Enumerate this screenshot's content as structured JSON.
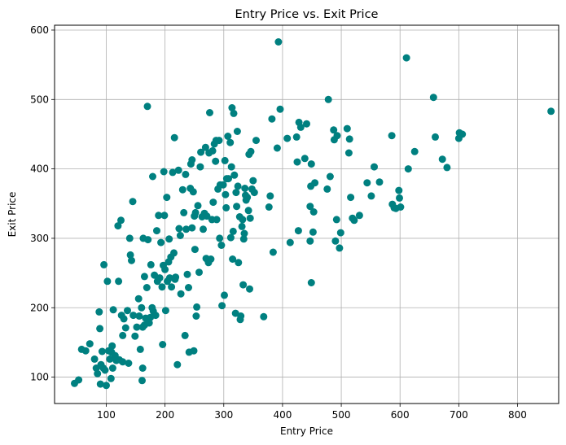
{
  "chart_data": {
    "type": "scatter",
    "title": "Entry Price vs. Exit Price",
    "xlabel": "Entry Price",
    "ylabel": "Exit Price",
    "xlim": [
      12,
      870
    ],
    "ylim": [
      62,
      607
    ],
    "xticks": [
      100,
      200,
      300,
      400,
      500,
      600,
      700,
      800
    ],
    "yticks": [
      100,
      200,
      300,
      400,
      500,
      600
    ],
    "grid": true,
    "marker_color": "#008080",
    "points": [
      [
        46,
        91
      ],
      [
        53,
        96
      ],
      [
        58,
        140
      ],
      [
        65,
        138
      ],
      [
        72,
        148
      ],
      [
        80,
        126
      ],
      [
        83,
        113
      ],
      [
        85,
        105
      ],
      [
        88,
        194
      ],
      [
        89,
        170
      ],
      [
        90,
        90
      ],
      [
        91,
        118
      ],
      [
        93,
        137
      ],
      [
        95,
        113
      ],
      [
        96,
        262
      ],
      [
        98,
        110
      ],
      [
        100,
        88
      ],
      [
        102,
        238
      ],
      [
        104,
        138
      ],
      [
        106,
        126
      ],
      [
        108,
        98
      ],
      [
        109,
        136
      ],
      [
        110,
        145
      ],
      [
        111,
        113
      ],
      [
        112,
        197
      ],
      [
        115,
        131
      ],
      [
        117,
        124
      ],
      [
        120,
        318
      ],
      [
        121,
        238
      ],
      [
        122,
        125
      ],
      [
        125,
        326
      ],
      [
        126,
        189
      ],
      [
        128,
        160
      ],
      [
        128,
        122
      ],
      [
        130,
        184
      ],
      [
        133,
        171
      ],
      [
        136,
        196
      ],
      [
        138,
        120
      ],
      [
        140,
        300
      ],
      [
        141,
        276
      ],
      [
        143,
        268
      ],
      [
        145,
        353
      ],
      [
        146,
        189
      ],
      [
        149,
        159
      ],
      [
        152,
        172
      ],
      [
        155,
        213
      ],
      [
        156,
        188
      ],
      [
        158,
        140
      ],
      [
        160,
        200
      ],
      [
        161,
        95
      ],
      [
        162,
        113
      ],
      [
        162,
        172
      ],
      [
        163,
        300
      ],
      [
        165,
        245
      ],
      [
        165,
        175
      ],
      [
        167,
        185
      ],
      [
        169,
        229
      ],
      [
        170,
        490
      ],
      [
        171,
        298
      ],
      [
        173,
        178
      ],
      [
        175,
        186
      ],
      [
        176,
        262
      ],
      [
        178,
        200
      ],
      [
        179,
        389
      ],
      [
        180,
        195
      ],
      [
        182,
        247
      ],
      [
        184,
        189
      ],
      [
        186,
        311
      ],
      [
        187,
        238
      ],
      [
        189,
        333
      ],
      [
        191,
        243
      ],
      [
        193,
        294
      ],
      [
        195,
        230
      ],
      [
        196,
        147
      ],
      [
        197,
        261
      ],
      [
        198,
        396
      ],
      [
        199,
        333
      ],
      [
        200,
        255
      ],
      [
        201,
        196
      ],
      [
        203,
        359
      ],
      [
        204,
        238
      ],
      [
        206,
        266
      ],
      [
        207,
        299
      ],
      [
        208,
        243
      ],
      [
        210,
        273
      ],
      [
        211,
        230
      ],
      [
        213,
        395
      ],
      [
        215,
        279
      ],
      [
        216,
        445
      ],
      [
        217,
        241
      ],
      [
        218,
        244
      ],
      [
        221,
        118
      ],
      [
        223,
        398
      ],
      [
        224,
        314
      ],
      [
        226,
        304
      ],
      [
        227,
        220
      ],
      [
        230,
        370
      ],
      [
        232,
        337
      ],
      [
        234,
        160
      ],
      [
        235,
        392
      ],
      [
        236,
        313
      ],
      [
        238,
        248
      ],
      [
        240,
        229
      ],
      [
        241,
        136
      ],
      [
        243,
        372
      ],
      [
        244,
        407
      ],
      [
        246,
        413
      ],
      [
        246,
        315
      ],
      [
        248,
        367
      ],
      [
        249,
        138
      ],
      [
        250,
        332
      ],
      [
        251,
        284
      ],
      [
        252,
        337
      ],
      [
        253,
        188
      ],
      [
        254,
        201
      ],
      [
        256,
        347
      ],
      [
        258,
        251
      ],
      [
        260,
        403
      ],
      [
        261,
        424
      ],
      [
        263,
        331
      ],
      [
        265,
        313
      ],
      [
        267,
        336
      ],
      [
        269,
        431
      ],
      [
        270,
        271
      ],
      [
        271,
        332
      ],
      [
        273,
        268
      ],
      [
        274,
        265
      ],
      [
        275,
        423
      ],
      [
        276,
        481
      ],
      [
        278,
        270
      ],
      [
        280,
        327
      ],
      [
        281,
        426
      ],
      [
        282,
        352
      ],
      [
        284,
        436
      ],
      [
        286,
        411
      ],
      [
        287,
        441
      ],
      [
        288,
        327
      ],
      [
        290,
        371
      ],
      [
        292,
        441
      ],
      [
        293,
        300
      ],
      [
        294,
        377
      ],
      [
        296,
        290
      ],
      [
        297,
        203
      ],
      [
        299,
        377
      ],
      [
        301,
        218
      ],
      [
        302,
        412
      ],
      [
        303,
        363
      ],
      [
        304,
        344
      ],
      [
        305,
        386
      ],
      [
        307,
        447
      ],
      [
        308,
        386
      ],
      [
        311,
        438
      ],
      [
        312,
        301
      ],
      [
        313,
        403
      ],
      [
        314,
        488
      ],
      [
        315,
        270
      ],
      [
        316,
        310
      ],
      [
        317,
        480
      ],
      [
        318,
        391
      ],
      [
        320,
        192
      ],
      [
        321,
        366
      ],
      [
        322,
        346
      ],
      [
        323,
        454
      ],
      [
        324,
        375
      ],
      [
        325,
        265
      ],
      [
        327,
        331
      ],
      [
        328,
        183
      ],
      [
        329,
        188
      ],
      [
        331,
        317
      ],
      [
        332,
        327
      ],
      [
        333,
        233
      ],
      [
        334,
        299
      ],
      [
        335,
        307
      ],
      [
        336,
        372
      ],
      [
        337,
        362
      ],
      [
        338,
        355
      ],
      [
        340,
        359
      ],
      [
        342,
        340
      ],
      [
        343,
        421
      ],
      [
        344,
        227
      ],
      [
        345,
        329
      ],
      [
        346,
        425
      ],
      [
        348,
        371
      ],
      [
        350,
        383
      ],
      [
        352,
        366
      ],
      [
        355,
        441
      ],
      [
        368,
        187
      ],
      [
        377,
        345
      ],
      [
        379,
        361
      ],
      [
        382,
        472
      ],
      [
        384,
        280
      ],
      [
        391,
        430
      ],
      [
        393,
        583
      ],
      [
        396,
        486
      ],
      [
        408,
        444
      ],
      [
        413,
        294
      ],
      [
        424,
        446
      ],
      [
        425,
        410
      ],
      [
        427,
        311
      ],
      [
        428,
        467
      ],
      [
        431,
        460
      ],
      [
        438,
        415
      ],
      [
        441,
        465
      ],
      [
        447,
        296
      ],
      [
        447,
        346
      ],
      [
        448,
        375
      ],
      [
        449,
        407
      ],
      [
        449,
        236
      ],
      [
        452,
        309
      ],
      [
        453,
        338
      ],
      [
        455,
        380
      ],
      [
        476,
        371
      ],
      [
        478,
        500
      ],
      [
        481,
        389
      ],
      [
        487,
        456
      ],
      [
        488,
        442
      ],
      [
        490,
        296
      ],
      [
        492,
        327
      ],
      [
        493,
        448
      ],
      [
        497,
        286
      ],
      [
        499,
        308
      ],
      [
        510,
        458
      ],
      [
        513,
        423
      ],
      [
        514,
        443
      ],
      [
        516,
        359
      ],
      [
        519,
        329
      ],
      [
        522,
        326
      ],
      [
        531,
        333
      ],
      [
        544,
        380
      ],
      [
        551,
        361
      ],
      [
        556,
        403
      ],
      [
        565,
        381
      ],
      [
        586,
        448
      ],
      [
        587,
        349
      ],
      [
        590,
        344
      ],
      [
        593,
        343
      ],
      [
        598,
        369
      ],
      [
        599,
        358
      ],
      [
        601,
        345
      ],
      [
        611,
        560
      ],
      [
        614,
        400
      ],
      [
        625,
        425
      ],
      [
        657,
        503
      ],
      [
        660,
        446
      ],
      [
        672,
        414
      ],
      [
        680,
        402
      ],
      [
        700,
        444
      ],
      [
        701,
        452
      ],
      [
        706,
        450
      ],
      [
        857,
        483
      ]
    ]
  }
}
